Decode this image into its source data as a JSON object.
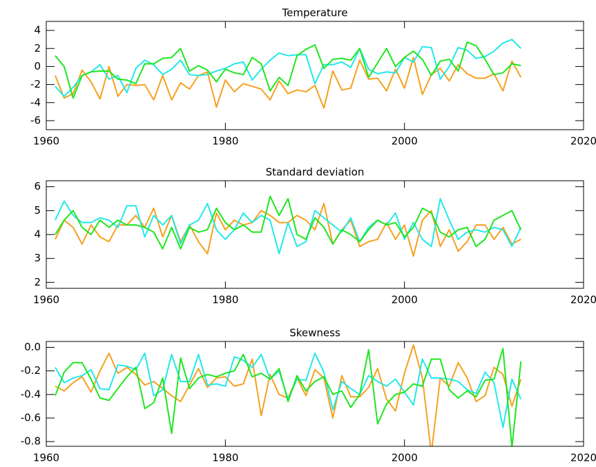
{
  "chart_data": [
    {
      "type": "line",
      "title": "Temperature",
      "x": [
        1961,
        1962,
        1963,
        1964,
        1965,
        1966,
        1967,
        1968,
        1969,
        1970,
        1971,
        1972,
        1973,
        1974,
        1975,
        1976,
        1977,
        1978,
        1979,
        1980,
        1981,
        1982,
        1983,
        1984,
        1985,
        1986,
        1987,
        1988,
        1989,
        1990,
        1991,
        1992,
        1993,
        1994,
        1995,
        1996,
        1997,
        1998,
        1999,
        2000,
        2001,
        2002,
        2003,
        2004,
        2005,
        2006,
        2007,
        2008,
        2009,
        2010,
        2011,
        2012,
        2013
      ],
      "series": [
        {
          "color": "#f5a01e",
          "values": [
            -1.0,
            -3.5,
            -3.0,
            -0.4,
            -1.7,
            -3.6,
            0.0,
            -3.3,
            -2.0,
            -2.1,
            -2.0,
            -3.7,
            -1.0,
            -3.7,
            -1.8,
            -2.5,
            -1.0,
            -0.6,
            -4.5,
            -1.5,
            -2.8,
            -1.9,
            -2.2,
            -2.5,
            -3.7,
            -1.6,
            -3.0,
            -2.6,
            -2.8,
            -2.1,
            -4.6,
            -0.5,
            -2.6,
            -2.4,
            0.7,
            -1.4,
            -1.3,
            -2.7,
            -0.3,
            -2.4,
            1.0,
            -3.1,
            -0.9,
            -0.2,
            -1.6,
            0.2,
            -0.8,
            -1.3,
            -1.3,
            -0.8,
            -2.7,
            0.6,
            -1.2
          ]
        },
        {
          "color": "#22e8e8",
          "values": [
            -2.2,
            -3.3,
            -2.3,
            -1.0,
            -0.6,
            0.2,
            -1.4,
            -1.0,
            -2.9,
            -0.2,
            0.7,
            0.2,
            -0.9,
            -0.3,
            0.7,
            -0.9,
            -1.0,
            -0.9,
            -0.5,
            -0.2,
            0.3,
            0.5,
            -1.5,
            -0.3,
            0.7,
            1.5,
            1.2,
            1.3,
            1.3,
            -1.9,
            0.2,
            0.2,
            0.5,
            -0.1,
            2.0,
            -0.3,
            -0.8,
            -0.6,
            -0.7,
            1.0,
            0.5,
            2.2,
            2.1,
            -1.4,
            0.0,
            2.1,
            1.8,
            0.9,
            1.1,
            1.7,
            2.6,
            3.0,
            2.0
          ]
        },
        {
          "color": "#1ee61e",
          "values": [
            1.2,
            0.0,
            -3.5,
            -1.0,
            -0.6,
            -0.5,
            -0.5,
            -1.4,
            -1.5,
            -1.9,
            0.3,
            0.3,
            0.9,
            1.0,
            2.0,
            -0.5,
            0.1,
            -0.4,
            -1.7,
            -0.3,
            -0.7,
            -0.9,
            1.0,
            0.3,
            -2.7,
            -1.2,
            -2.1,
            1.2,
            1.9,
            2.4,
            -0.2,
            0.8,
            0.9,
            0.7,
            2.0,
            -1.2,
            0.4,
            2.0,
            0.0,
            1.0,
            1.7,
            0.8,
            -1.0,
            0.6,
            0.8,
            -0.5,
            2.7,
            2.3,
            0.8,
            -0.9,
            -0.7,
            0.3,
            0.1
          ]
        }
      ],
      "xlim": [
        1960,
        2020
      ],
      "xticks": [
        1960,
        1980,
        2000,
        2020
      ],
      "ylim": [
        -7,
        5
      ],
      "yticks": [
        -6,
        -4,
        -2,
        0,
        2,
        4
      ]
    },
    {
      "type": "line",
      "title": "Standard deviation",
      "x": [
        1961,
        1962,
        1963,
        1964,
        1965,
        1966,
        1967,
        1968,
        1969,
        1970,
        1971,
        1972,
        1973,
        1974,
        1975,
        1976,
        1977,
        1978,
        1979,
        1980,
        1981,
        1982,
        1983,
        1984,
        1985,
        1986,
        1987,
        1988,
        1989,
        1990,
        1991,
        1992,
        1993,
        1994,
        1995,
        1996,
        1997,
        1998,
        1999,
        2000,
        2001,
        2002,
        2003,
        2004,
        2005,
        2006,
        2007,
        2008,
        2009,
        2010,
        2011,
        2012,
        2013
      ],
      "series": [
        {
          "color": "#f5a01e",
          "values": [
            3.8,
            4.6,
            4.3,
            3.6,
            4.4,
            3.9,
            3.7,
            4.4,
            4.4,
            4.8,
            4.3,
            5.1,
            3.9,
            4.8,
            3.7,
            4.4,
            3.7,
            3.2,
            4.9,
            4.2,
            4.6,
            4.4,
            4.5,
            5.0,
            4.8,
            4.5,
            4.5,
            4.8,
            4.6,
            4.2,
            5.3,
            3.6,
            4.2,
            4.6,
            3.5,
            3.7,
            3.8,
            4.5,
            3.8,
            4.4,
            3.1,
            4.6,
            5.0,
            3.5,
            4.2,
            3.3,
            3.7,
            4.4,
            4.4,
            3.8,
            4.3,
            3.6,
            3.8
          ]
        },
        {
          "color": "#22e8e8",
          "values": [
            4.6,
            5.4,
            4.8,
            4.5,
            4.5,
            4.7,
            4.6,
            4.3,
            5.2,
            5.2,
            3.9,
            4.8,
            4.4,
            4.8,
            3.6,
            4.4,
            4.6,
            5.3,
            4.2,
            3.8,
            4.2,
            4.9,
            4.5,
            4.8,
            4.6,
            3.2,
            4.5,
            3.5,
            3.7,
            5.0,
            4.7,
            4.4,
            4.1,
            4.7,
            3.7,
            4.3,
            4.6,
            4.4,
            4.9,
            3.8,
            4.5,
            3.8,
            3.5,
            5.5,
            4.6,
            3.8,
            4.1,
            4.2,
            4.1,
            4.3,
            4.2,
            3.5,
            4.3
          ]
        },
        {
          "color": "#1ee61e",
          "values": [
            4.0,
            4.6,
            5.0,
            4.3,
            4.0,
            4.6,
            4.3,
            4.6,
            4.4,
            4.4,
            4.3,
            4.1,
            3.4,
            4.3,
            3.4,
            4.3,
            4.1,
            4.2,
            5.1,
            4.5,
            4.2,
            4.4,
            4.1,
            4.1,
            5.6,
            4.8,
            5.5,
            4.0,
            3.8,
            4.7,
            4.3,
            3.6,
            4.2,
            4.0,
            3.7,
            4.2,
            4.6,
            4.4,
            4.5,
            3.9,
            4.3,
            5.1,
            4.9,
            4.1,
            3.9,
            4.2,
            4.3,
            3.5,
            3.8,
            4.6,
            4.8,
            5.0,
            4.2
          ]
        }
      ],
      "xlim": [
        1960,
        2020
      ],
      "xticks": [
        1960,
        1980,
        2000,
        2020
      ],
      "ylim": [
        1.75,
        6.25
      ],
      "yticks": [
        2,
        3,
        4,
        5,
        6
      ]
    },
    {
      "type": "line",
      "title": "Skewness",
      "x": [
        1961,
        1962,
        1963,
        1964,
        1965,
        1966,
        1967,
        1968,
        1969,
        1970,
        1971,
        1972,
        1973,
        1974,
        1975,
        1976,
        1977,
        1978,
        1979,
        1980,
        1981,
        1982,
        1983,
        1984,
        1985,
        1986,
        1987,
        1988,
        1989,
        1990,
        1991,
        1992,
        1993,
        1994,
        1995,
        1996,
        1997,
        1998,
        1999,
        2000,
        2001,
        2002,
        2003,
        2004,
        2005,
        2006,
        2007,
        2008,
        2009,
        2010,
        2011,
        2012,
        2013
      ],
      "series": [
        {
          "color": "#f5a01e",
          "values": [
            -0.33,
            -0.37,
            -0.3,
            -0.25,
            -0.38,
            -0.2,
            -0.05,
            -0.22,
            -0.17,
            -0.23,
            -0.32,
            -0.29,
            -0.35,
            -0.41,
            -0.46,
            -0.32,
            -0.18,
            -0.34,
            -0.26,
            -0.25,
            -0.33,
            -0.31,
            -0.1,
            -0.58,
            -0.23,
            -0.4,
            -0.43,
            -0.26,
            -0.41,
            -0.19,
            -0.26,
            -0.6,
            -0.24,
            -0.42,
            -0.42,
            -0.34,
            -0.18,
            -0.44,
            -0.54,
            -0.22,
            0.02,
            -0.26,
            -0.9,
            -0.26,
            -0.33,
            -0.13,
            -0.26,
            -0.46,
            -0.41,
            -0.17,
            -0.23,
            -0.5,
            -0.27
          ]
        },
        {
          "color": "#22e8e8",
          "values": [
            -0.17,
            -0.3,
            -0.26,
            -0.24,
            -0.19,
            -0.35,
            -0.36,
            -0.15,
            -0.16,
            -0.19,
            -0.05,
            -0.41,
            -0.36,
            -0.06,
            -0.29,
            -0.29,
            -0.06,
            -0.32,
            -0.31,
            -0.33,
            -0.08,
            -0.11,
            -0.17,
            -0.06,
            -0.27,
            -0.2,
            -0.44,
            -0.27,
            -0.28,
            -0.05,
            -0.21,
            -0.53,
            -0.29,
            -0.35,
            -0.4,
            -0.24,
            -0.29,
            -0.33,
            -0.27,
            -0.38,
            -0.49,
            -0.1,
            -0.26,
            -0.26,
            -0.27,
            -0.29,
            -0.36,
            -0.39,
            -0.21,
            -0.3,
            -0.68,
            -0.27,
            -0.44
          ]
        },
        {
          "color": "#1ee61e",
          "values": [
            -0.41,
            -0.21,
            -0.13,
            -0.13,
            -0.27,
            -0.43,
            -0.45,
            -0.35,
            -0.25,
            -0.17,
            -0.52,
            -0.47,
            -0.26,
            -0.73,
            -0.09,
            -0.35,
            -0.26,
            -0.23,
            -0.25,
            -0.22,
            -0.2,
            -0.06,
            -0.25,
            -0.22,
            -0.27,
            -0.18,
            -0.46,
            -0.24,
            -0.37,
            -0.29,
            -0.25,
            -0.4,
            -0.37,
            -0.51,
            -0.4,
            -0.02,
            -0.65,
            -0.48,
            -0.4,
            -0.38,
            -0.31,
            -0.33,
            -0.1,
            -0.1,
            -0.36,
            -0.43,
            -0.37,
            -0.42,
            -0.28,
            -0.27,
            -0.01,
            -0.85,
            -0.12
          ]
        }
      ],
      "xlim": [
        1960,
        2020
      ],
      "xticks": [
        1960,
        1980,
        2000,
        2020
      ],
      "ylim": [
        -0.84,
        0.05
      ],
      "yticks": [
        -0.8,
        -0.6,
        -0.4,
        -0.2,
        {
          "value": 0,
          "label": "0.0"
        }
      ]
    }
  ]
}
